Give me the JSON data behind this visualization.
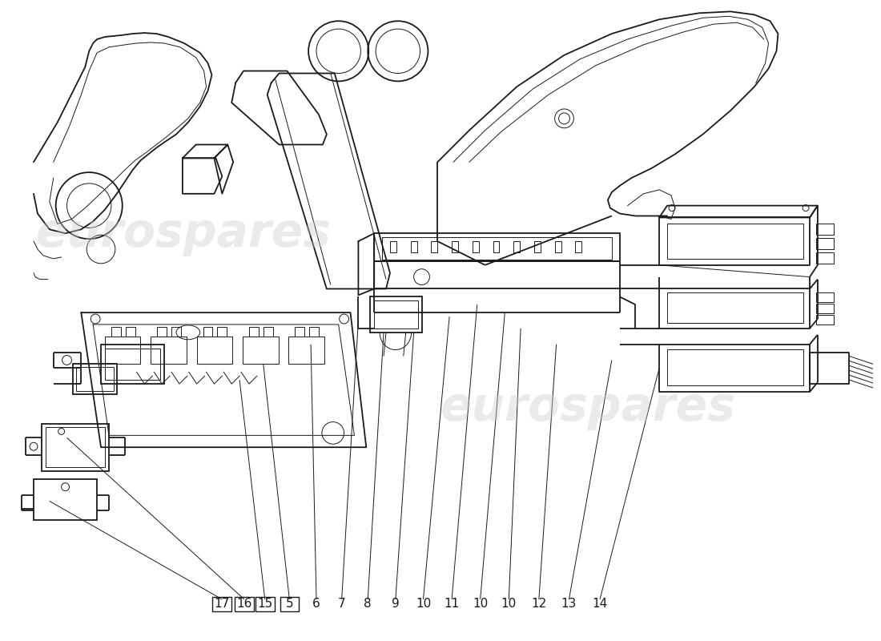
{
  "background_color": "#ffffff",
  "watermark_text": "eurospares",
  "watermark_color": "#cccccc",
  "watermark_alpha": 0.4,
  "line_color": "#1a1a1a",
  "line_width": 1.3,
  "label_numbers": [
    "17",
    "16",
    "15",
    "5",
    "6",
    "7",
    "8",
    "9",
    "10",
    "11",
    "10",
    "10",
    "12",
    "13",
    "14"
  ],
  "label_boxed": [
    true,
    true,
    true,
    true,
    false,
    false,
    false,
    false,
    false,
    false,
    false,
    false,
    false,
    false,
    false
  ],
  "fig_width": 11.0,
  "fig_height": 8.0,
  "dpi": 100
}
